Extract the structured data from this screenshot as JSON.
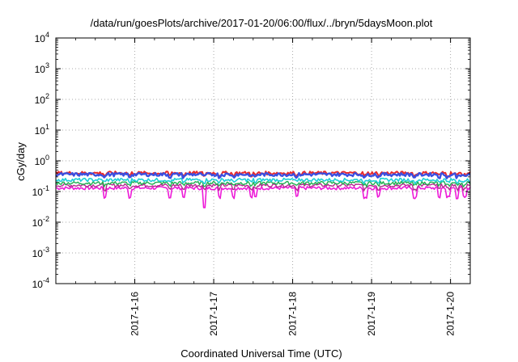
{
  "chart_data": {
    "type": "line",
    "title": "/data/run/goesPlots/archive/2017-01-20/06:00/flux/../bryn/5daysMoon.plot",
    "xlabel": "Coordinated Universal Time (UTC)",
    "ylabel": "cGy/day",
    "yscale": "log",
    "ylim_exponents": [
      -4,
      4
    ],
    "y_ticks": [
      {
        "base": "10",
        "exp": "4",
        "value": 10000
      },
      {
        "base": "10",
        "exp": "3",
        "value": 1000
      },
      {
        "base": "10",
        "exp": "2",
        "value": 100
      },
      {
        "base": "10",
        "exp": "1",
        "value": 10
      },
      {
        "base": "10",
        "exp": "0",
        "value": 1
      },
      {
        "base": "10",
        "exp": "-1",
        "value": 0.1
      },
      {
        "base": "10",
        "exp": "-2",
        "value": 0.01
      },
      {
        "base": "10",
        "exp": "-3",
        "value": 0.001
      },
      {
        "base": "10",
        "exp": "-4",
        "value": 0.0001
      }
    ],
    "xlim_days": [
      0,
      5.25
    ],
    "x_ticks": [
      {
        "label": "2017-1-16",
        "day": 1
      },
      {
        "label": "2017-1-17",
        "day": 2
      },
      {
        "label": "2017-1-18",
        "day": 3
      },
      {
        "label": "2017-1-19",
        "day": 4
      },
      {
        "label": "2017-1-20",
        "day": 5
      }
    ],
    "grid": true,
    "legend": "none",
    "series": [
      {
        "color": "#e8292b",
        "level": 0.4,
        "width": 2
      },
      {
        "color": "#3b4fe0",
        "level": 0.36,
        "width": 2.4
      },
      {
        "color": "#1ecfd6",
        "level": 0.24,
        "width": 1.6
      },
      {
        "color": "#20b050",
        "level": 0.19,
        "width": 1.4
      },
      {
        "color": "#b5288f",
        "level": 0.16,
        "width": 1.4
      },
      {
        "color": "#ee1ad8",
        "level": 0.13,
        "width": 1.6
      }
    ]
  }
}
